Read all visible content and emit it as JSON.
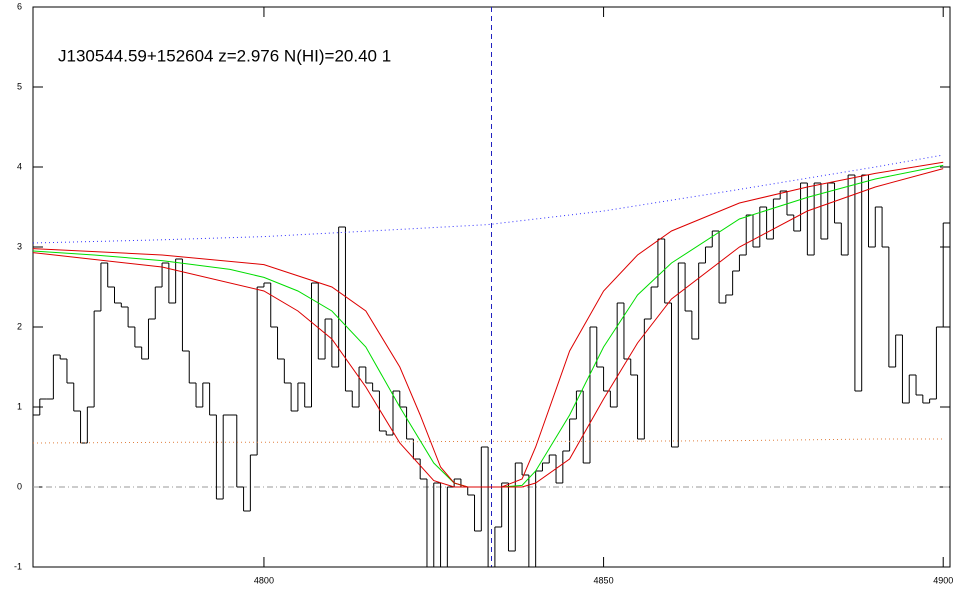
{
  "chart_data": {
    "type": "line",
    "title": "J130544.59+152604 z=2.976 N(HI)=20.40 1",
    "xlim": [
      4766,
      4901
    ],
    "ylim": [
      -1,
      6
    ],
    "xticks": [
      4800,
      4850,
      4900
    ],
    "yticks": [
      -1,
      0,
      1,
      2,
      3,
      4,
      5,
      6
    ],
    "vlines": [
      {
        "x": 4833.5,
        "color": "#2020c0",
        "style": "dashed"
      }
    ],
    "hlines": [
      {
        "y": 0,
        "color": "#999999",
        "style": "dashdot"
      }
    ],
    "series": [
      {
        "style": "step",
        "color": "#000000",
        "x": [
          4766,
          4767,
          4768,
          4769,
          4770,
          4771,
          4772,
          4773,
          4774,
          4775,
          4776,
          4777,
          4778,
          4779,
          4780,
          4781,
          4782,
          4783,
          4784,
          4785,
          4786,
          4787,
          4788,
          4789,
          4790,
          4791,
          4792,
          4793,
          4794,
          4795,
          4796,
          4797,
          4798,
          4799,
          4800,
          4801,
          4802,
          4803,
          4804,
          4805,
          4806,
          4807,
          4808,
          4809,
          4810,
          4811,
          4812,
          4813,
          4814,
          4815,
          4816,
          4817,
          4818,
          4819,
          4820,
          4821,
          4822,
          4823,
          4824,
          4825,
          4826,
          4827,
          4828,
          4829,
          4830,
          4831,
          4832,
          4833,
          4834,
          4835,
          4836,
          4837,
          4838,
          4839,
          4840,
          4841,
          4842,
          4843,
          4844,
          4845,
          4846,
          4847,
          4848,
          4849,
          4850,
          4851,
          4852,
          4853,
          4854,
          4855,
          4856,
          4857,
          4858,
          4859,
          4860,
          4861,
          4862,
          4863,
          4864,
          4865,
          4866,
          4867,
          4868,
          4869,
          4870,
          4871,
          4872,
          4873,
          4874,
          4875,
          4876,
          4877,
          4878,
          4879,
          4880,
          4881,
          4882,
          4883,
          4884,
          4885,
          4886,
          4887,
          4888,
          4889,
          4890,
          4891,
          4892,
          4893,
          4894,
          4895,
          4896,
          4897,
          4898,
          4899,
          4900
        ],
        "values": [
          0.9,
          1.1,
          1.1,
          1.65,
          1.6,
          1.3,
          0.95,
          0.55,
          1.0,
          2.2,
          2.8,
          2.5,
          2.3,
          2.25,
          2.0,
          1.75,
          1.6,
          2.1,
          2.5,
          2.8,
          2.3,
          2.85,
          1.7,
          1.3,
          1.0,
          1.3,
          0.9,
          -0.15,
          0.9,
          0.9,
          0.0,
          -0.3,
          0.4,
          2.5,
          2.55,
          2.0,
          1.6,
          1.3,
          0.95,
          1.3,
          1.0,
          2.55,
          1.6,
          2.1,
          1.5,
          3.25,
          1.2,
          1.0,
          1.5,
          1.3,
          1.2,
          0.7,
          0.65,
          1.2,
          1.0,
          0.6,
          0.35,
          0.1,
          -1.0,
          0.05,
          -1.0,
          0.0,
          0.1,
          0.0,
          -0.1,
          -0.55,
          0.5,
          -1.0,
          -0.5,
          0.05,
          -0.8,
          0.3,
          0.15,
          -1.0,
          0.2,
          0.3,
          0.4,
          0.05,
          0.45,
          0.85,
          1.2,
          0.3,
          2.0,
          1.5,
          1.2,
          1.0,
          2.3,
          1.6,
          1.4,
          0.6,
          2.1,
          2.5,
          3.1,
          2.3,
          0.5,
          2.8,
          2.2,
          1.85,
          2.8,
          3.0,
          3.2,
          2.3,
          2.4,
          2.7,
          2.9,
          3.4,
          3.0,
          3.5,
          3.1,
          3.6,
          3.7,
          3.4,
          3.2,
          3.8,
          2.9,
          3.8,
          3.1,
          3.8,
          3.3,
          2.9,
          3.9,
          1.2,
          3.9,
          3.0,
          3.5,
          3.0,
          1.5,
          1.9,
          1.05,
          1.4,
          1.15,
          1.05,
          1.1,
          2.0,
          3.3
        ]
      },
      {
        "style": "dotted",
        "color": "#3030ff",
        "x": [
          4766,
          4785,
          4800,
          4820,
          4833,
          4850,
          4870,
          4890,
          4900
        ],
        "values": [
          3.05,
          3.09,
          3.13,
          3.22,
          3.28,
          3.45,
          3.72,
          4.0,
          4.15
        ]
      },
      {
        "style": "dotted",
        "color": "#e08040",
        "x": [
          4766,
          4790,
          4810,
          4830,
          4850,
          4870,
          4890,
          4900
        ],
        "values": [
          0.55,
          0.56,
          0.56,
          0.57,
          0.57,
          0.58,
          0.6,
          0.6
        ]
      },
      {
        "style": "solid",
        "color": "#00dd00",
        "x": [
          4766,
          4775,
          4785,
          4795,
          4800,
          4805,
          4810,
          4815,
          4820,
          4825,
          4828,
          4830,
          4835,
          4838,
          4840,
          4845,
          4850,
          4855,
          4860,
          4870,
          4880,
          4890,
          4900
        ],
        "values": [
          2.95,
          2.9,
          2.83,
          2.72,
          2.62,
          2.45,
          2.2,
          1.75,
          1.0,
          0.3,
          0.05,
          0.0,
          0.0,
          0.02,
          0.2,
          0.9,
          1.75,
          2.4,
          2.8,
          3.35,
          3.62,
          3.85,
          4.02
        ]
      },
      {
        "style": "solid",
        "color": "#dd0000",
        "x": [
          4766,
          4785,
          4800,
          4810,
          4815,
          4820,
          4823,
          4826,
          4828,
          4830,
          4835,
          4838,
          4840,
          4845,
          4850,
          4855,
          4860,
          4870,
          4880,
          4890,
          4900
        ],
        "values": [
          2.98,
          2.9,
          2.78,
          2.5,
          2.2,
          1.5,
          0.9,
          0.25,
          0.05,
          0.0,
          0.0,
          0.1,
          0.5,
          1.7,
          2.45,
          2.9,
          3.2,
          3.55,
          3.75,
          3.92,
          4.06
        ]
      },
      {
        "style": "solid",
        "color": "#dd0000",
        "x": [
          4766,
          4785,
          4800,
          4805,
          4810,
          4815,
          4820,
          4825,
          4828,
          4838,
          4840,
          4845,
          4850,
          4855,
          4860,
          4870,
          4880,
          4890,
          4900
        ],
        "values": [
          2.93,
          2.75,
          2.45,
          2.2,
          1.85,
          1.25,
          0.55,
          0.08,
          0.0,
          0.0,
          0.05,
          0.35,
          1.1,
          1.8,
          2.35,
          3.0,
          3.45,
          3.75,
          3.98
        ]
      }
    ]
  }
}
